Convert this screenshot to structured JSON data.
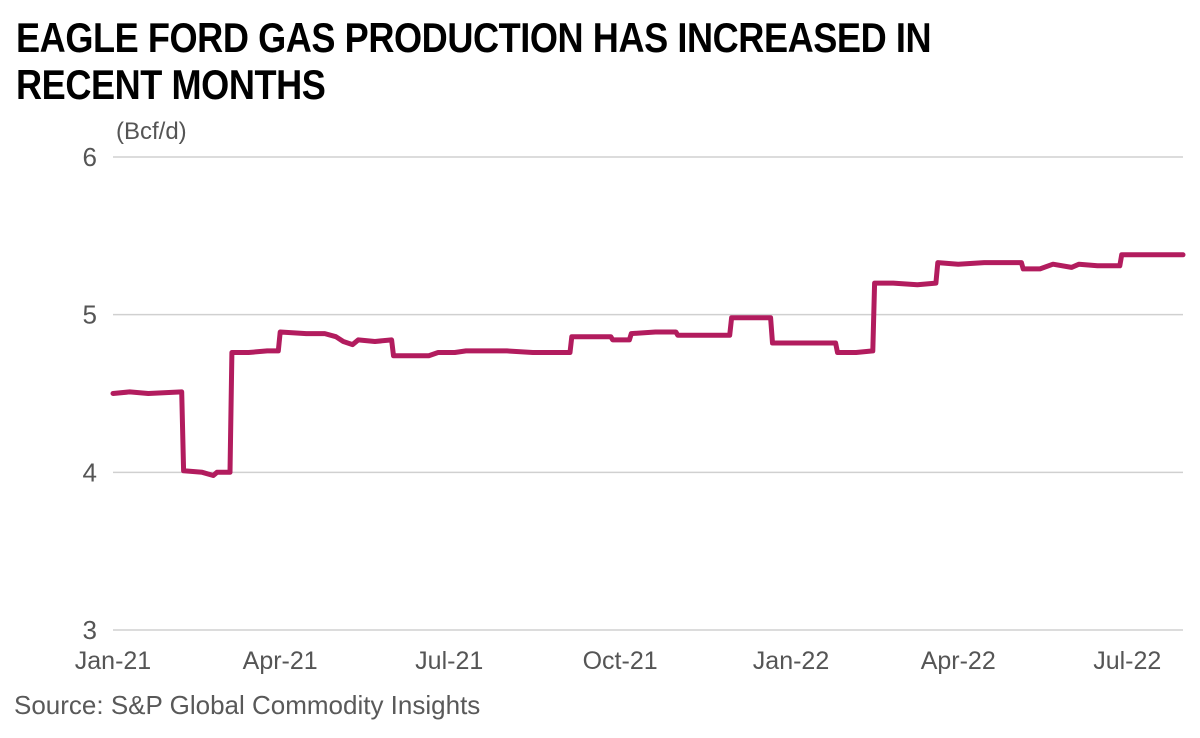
{
  "title": "EAGLE FORD GAS PRODUCTION HAS INCREASED IN RECENT MONTHS",
  "source": "Source: S&P Global Commodity Insights",
  "colors": {
    "line": "#b21c5e",
    "grid": "#d0d0d0",
    "axis": "#555555"
  },
  "chart_data": {
    "type": "line",
    "title": "EAGLE FORD GAS PRODUCTION HAS INCREASED IN RECENT MONTHS",
    "ylabel": "(Bcf/d)",
    "xlabel": "",
    "ylim": [
      3,
      6
    ],
    "yticks": [
      "3",
      "4",
      "5",
      "6"
    ],
    "xlim": [
      "2021-01-01",
      "2022-07-31"
    ],
    "xticks": [
      {
        "date": "2021-01-01",
        "label": "Jan-21"
      },
      {
        "date": "2021-04-01",
        "label": "Apr-21"
      },
      {
        "date": "2021-07-01",
        "label": "Jul-21"
      },
      {
        "date": "2021-10-01",
        "label": "Oct-21"
      },
      {
        "date": "2022-01-01",
        "label": "Jan-22"
      },
      {
        "date": "2022-04-01",
        "label": "Apr-22"
      },
      {
        "date": "2022-07-01",
        "label": "Jul-22"
      }
    ],
    "grid": true,
    "series": [
      {
        "points": [
          [
            "2021-01-01",
            4.5
          ],
          [
            "2021-01-10",
            4.51
          ],
          [
            "2021-01-20",
            4.5
          ],
          [
            "2021-02-07",
            4.51
          ],
          [
            "2021-02-08",
            4.01
          ],
          [
            "2021-02-18",
            4.0
          ],
          [
            "2021-02-24",
            3.98
          ],
          [
            "2021-02-26",
            4.0
          ],
          [
            "2021-03-05",
            4.0
          ],
          [
            "2021-03-06",
            4.76
          ],
          [
            "2021-03-15",
            4.76
          ],
          [
            "2021-03-25",
            4.77
          ],
          [
            "2021-03-31",
            4.77
          ],
          [
            "2021-04-01",
            4.89
          ],
          [
            "2021-04-15",
            4.88
          ],
          [
            "2021-04-25",
            4.88
          ],
          [
            "2021-05-01",
            4.86
          ],
          [
            "2021-05-05",
            4.83
          ],
          [
            "2021-05-10",
            4.81
          ],
          [
            "2021-05-13",
            4.84
          ],
          [
            "2021-05-22",
            4.83
          ],
          [
            "2021-05-31",
            4.84
          ],
          [
            "2021-06-01",
            4.74
          ],
          [
            "2021-06-10",
            4.74
          ],
          [
            "2021-06-20",
            4.74
          ],
          [
            "2021-06-25",
            4.76
          ],
          [
            "2021-07-04",
            4.76
          ],
          [
            "2021-07-10",
            4.77
          ],
          [
            "2021-07-20",
            4.77
          ],
          [
            "2021-08-01",
            4.77
          ],
          [
            "2021-08-15",
            4.76
          ],
          [
            "2021-09-04",
            4.76
          ],
          [
            "2021-09-05",
            4.86
          ],
          [
            "2021-09-20",
            4.86
          ],
          [
            "2021-09-26",
            4.86
          ],
          [
            "2021-09-27",
            4.84
          ],
          [
            "2021-10-06",
            4.84
          ],
          [
            "2021-10-07",
            4.88
          ],
          [
            "2021-10-20",
            4.89
          ],
          [
            "2021-10-31",
            4.89
          ],
          [
            "2021-11-01",
            4.87
          ],
          [
            "2021-11-15",
            4.87
          ],
          [
            "2021-11-29",
            4.87
          ],
          [
            "2021-11-30",
            4.98
          ],
          [
            "2021-12-10",
            4.98
          ],
          [
            "2021-12-21",
            4.98
          ],
          [
            "2021-12-22",
            4.82
          ],
          [
            "2022-01-05",
            4.82
          ],
          [
            "2022-01-25",
            4.82
          ],
          [
            "2022-01-26",
            4.76
          ],
          [
            "2022-02-05",
            4.76
          ],
          [
            "2022-02-14",
            4.77
          ],
          [
            "2022-02-15",
            5.2
          ],
          [
            "2022-02-25",
            5.2
          ],
          [
            "2022-03-10",
            5.19
          ],
          [
            "2022-03-20",
            5.2
          ],
          [
            "2022-03-21",
            5.33
          ],
          [
            "2022-04-01",
            5.32
          ],
          [
            "2022-04-15",
            5.33
          ],
          [
            "2022-05-05",
            5.33
          ],
          [
            "2022-05-06",
            5.29
          ],
          [
            "2022-05-15",
            5.29
          ],
          [
            "2022-05-22",
            5.32
          ],
          [
            "2022-06-01",
            5.3
          ],
          [
            "2022-06-05",
            5.32
          ],
          [
            "2022-06-15",
            5.31
          ],
          [
            "2022-06-27",
            5.31
          ],
          [
            "2022-06-28",
            5.38
          ],
          [
            "2022-07-10",
            5.38
          ],
          [
            "2022-07-31",
            5.38
          ]
        ]
      }
    ]
  }
}
